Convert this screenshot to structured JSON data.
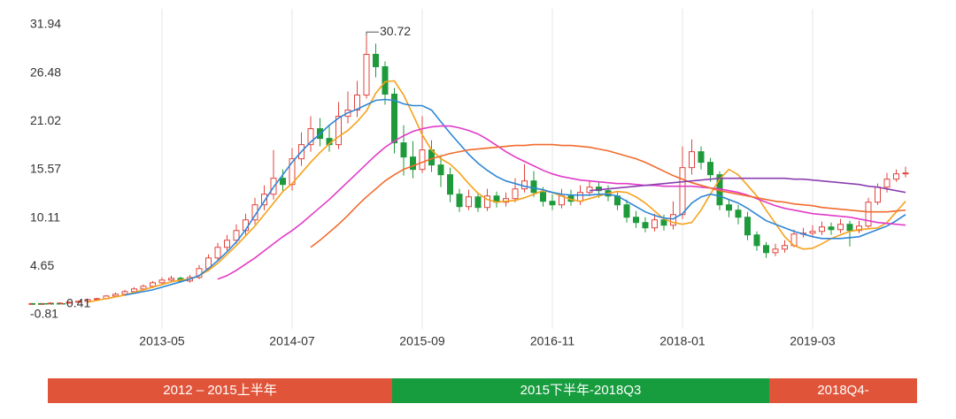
{
  "chart_data": {
    "type": "candlestick",
    "categories": [
      null,
      null,
      null,
      null,
      null,
      null,
      null,
      null,
      null,
      null,
      null,
      null,
      null,
      null,
      "2013-05",
      null,
      null,
      null,
      null,
      null,
      null,
      null,
      null,
      null,
      null,
      null,
      null,
      null,
      "2014-07",
      null,
      null,
      null,
      null,
      null,
      null,
      null,
      null,
      null,
      null,
      null,
      null,
      null,
      "2015-09",
      null,
      null,
      null,
      null,
      null,
      null,
      null,
      null,
      null,
      null,
      null,
      null,
      null,
      "2016-11",
      null,
      null,
      null,
      null,
      null,
      null,
      null,
      null,
      null,
      null,
      null,
      null,
      null,
      "2018-01",
      null,
      null,
      null,
      null,
      null,
      null,
      null,
      null,
      null,
      null,
      null,
      null,
      null,
      "2019-03",
      null,
      null,
      null,
      null,
      null,
      null,
      null,
      null,
      null,
      null
    ],
    "open": [
      0.45,
      0.45,
      0.45,
      0.5,
      0.5,
      0.6,
      0.7,
      0.9,
      1.0,
      1.3,
      1.5,
      1.8,
      2.1,
      2.4,
      2.8,
      3.1,
      3.3,
      3.0,
      3.4,
      4.4,
      5.6,
      6.8,
      7.6,
      8.7,
      9.9,
      11.6,
      12.8,
      14.6,
      13.9,
      16.8,
      18.4,
      20.2,
      19.1,
      18.4,
      21.6,
      22.3,
      24.0,
      28.6,
      27.2,
      24.1,
      18.6,
      17.0,
      15.6,
      17.8,
      16.1,
      15.0,
      12.8,
      11.4,
      12.5,
      11.3,
      12.6,
      11.9,
      12.3,
      13.4,
      14.3,
      13.0,
      12.0,
      11.6,
      12.6,
      12.0,
      13.0,
      13.6,
      13.2,
      12.6,
      11.6,
      10.2,
      9.6,
      9.0,
      9.9,
      9.3,
      10.5,
      15.8,
      17.6,
      16.4,
      15.0,
      11.6,
      11.0,
      10.2,
      8.2,
      7.0,
      6.2,
      6.6,
      7.0,
      8.3,
      8.4,
      8.6,
      9.1,
      8.8,
      9.4,
      8.7,
      9.2,
      11.9,
      13.6,
      14.5,
      15.1
    ],
    "high": [
      0.5,
      0.5,
      0.6,
      0.6,
      0.7,
      0.8,
      1.0,
      1.1,
      1.4,
      1.7,
      2.0,
      2.3,
      2.6,
      3.0,
      3.4,
      3.6,
      3.5,
      3.7,
      4.8,
      6.0,
      7.3,
      8.2,
      9.4,
      10.6,
      12.4,
      13.8,
      17.8,
      15.6,
      18.0,
      19.8,
      21.6,
      21.4,
      20.6,
      23.2,
      24.4,
      25.6,
      30.72,
      29.8,
      27.8,
      24.8,
      20.6,
      18.8,
      21.6,
      18.9,
      17.2,
      15.8,
      13.4,
      13.3,
      13.0,
      13.4,
      13.1,
      13.0,
      14.6,
      16.2,
      15.4,
      13.6,
      12.8,
      13.4,
      13.3,
      13.8,
      14.4,
      14.2,
      13.8,
      13.0,
      12.2,
      10.9,
      10.2,
      10.6,
      10.5,
      12.0,
      18.2,
      19.0,
      18.2,
      16.9,
      15.4,
      12.2,
      11.6,
      10.8,
      8.6,
      7.4,
      7.2,
      7.6,
      8.8,
      9.0,
      9.3,
      9.7,
      9.6,
      10.0,
      9.8,
      9.8,
      12.4,
      14.0,
      15.2,
      15.6,
      15.9
    ],
    "low": [
      0.41,
      0.41,
      0.41,
      0.45,
      0.45,
      0.5,
      0.6,
      0.8,
      0.9,
      1.2,
      1.4,
      1.6,
      1.9,
      2.2,
      2.6,
      2.9,
      2.8,
      2.8,
      3.2,
      4.1,
      5.3,
      6.4,
      7.2,
      8.2,
      9.4,
      11.0,
      12.2,
      13.1,
      13.2,
      16.0,
      17.6,
      18.2,
      17.6,
      17.9,
      20.8,
      21.5,
      23.6,
      26.0,
      22.9,
      17.4,
      14.9,
      14.6,
      15.2,
      15.3,
      13.6,
      11.9,
      10.8,
      11.0,
      10.8,
      10.9,
      11.3,
      11.4,
      11.9,
      13.0,
      12.5,
      11.4,
      11.0,
      11.2,
      11.5,
      11.6,
      12.6,
      12.4,
      12.0,
      11.0,
      9.6,
      9.0,
      8.5,
      8.6,
      8.7,
      8.8,
      10.0,
      15.0,
      15.6,
      14.2,
      11.0,
      10.2,
      9.4,
      7.6,
      6.4,
      5.6,
      5.8,
      6.2,
      6.8,
      7.9,
      8.0,
      8.2,
      8.2,
      8.4,
      6.9,
      8.4,
      9.0,
      11.6,
      13.0,
      14.2,
      14.7
    ],
    "close": [
      0.45,
      0.45,
      0.5,
      0.5,
      0.6,
      0.7,
      0.9,
      1.0,
      1.3,
      1.5,
      1.8,
      2.1,
      2.4,
      2.8,
      3.1,
      3.3,
      3.0,
      3.4,
      4.4,
      5.6,
      6.8,
      7.6,
      8.7,
      9.9,
      11.6,
      12.8,
      14.6,
      13.9,
      16.8,
      18.4,
      20.2,
      19.1,
      18.4,
      21.6,
      22.3,
      24.0,
      28.6,
      27.2,
      24.1,
      18.6,
      17.0,
      15.6,
      17.8,
      16.1,
      15.0,
      12.8,
      11.4,
      12.5,
      11.3,
      12.6,
      11.9,
      12.3,
      13.4,
      14.3,
      13.0,
      12.0,
      11.6,
      12.6,
      12.0,
      13.0,
      13.6,
      13.2,
      12.6,
      11.6,
      10.2,
      9.6,
      9.0,
      9.9,
      9.3,
      10.5,
      15.8,
      17.6,
      16.4,
      15.0,
      11.6,
      11.0,
      10.2,
      8.2,
      7.0,
      6.2,
      6.6,
      7.0,
      8.3,
      8.4,
      8.6,
      9.1,
      8.8,
      9.4,
      8.7,
      9.2,
      11.9,
      13.6,
      14.5,
      15.1,
      15.2
    ],
    "up_color": "#e0443c",
    "down_color": "#1e9a3a",
    "lines": [
      {
        "color": "#f5a21b",
        "values": [
          null,
          null,
          null,
          null,
          null,
          null,
          0.6,
          0.8,
          1.0,
          1.2,
          1.4,
          1.7,
          2.0,
          2.3,
          2.6,
          2.9,
          3.1,
          3.2,
          3.6,
          4.2,
          5.0,
          6.0,
          7.0,
          8.1,
          9.2,
          10.5,
          11.8,
          13.1,
          14.0,
          15.2,
          16.4,
          17.5,
          18.5,
          19.3,
          20.0,
          21.0,
          22.2,
          24.2,
          25.5,
          25.6,
          24.0,
          21.8,
          19.5,
          17.8,
          16.8,
          16.2,
          15.2,
          14.0,
          12.9,
          12.2,
          11.9,
          12.0,
          12.1,
          12.4,
          12.8,
          13.2,
          13.0,
          12.6,
          12.2,
          12.0,
          12.3,
          12.6,
          12.9,
          13.1,
          13.0,
          12.5,
          11.8,
          10.9,
          10.0,
          9.6,
          9.4,
          9.6,
          11.0,
          12.8,
          14.5,
          15.6,
          15.0,
          13.8,
          12.6,
          11.0,
          9.5,
          8.0,
          7.0,
          6.6,
          6.7,
          7.2,
          7.8,
          8.2,
          8.6,
          8.8,
          8.9,
          9.0,
          9.6,
          10.8,
          12.0
        ]
      },
      {
        "color": "#2f86d6",
        "values": [
          null,
          null,
          null,
          null,
          null,
          null,
          null,
          null,
          null,
          null,
          1.4,
          1.6,
          1.8,
          2.0,
          2.3,
          2.6,
          2.9,
          3.2,
          3.6,
          4.4,
          5.3,
          6.3,
          7.4,
          8.8,
          10.4,
          12.0,
          13.6,
          15.0,
          16.4,
          17.6,
          18.7,
          19.6,
          20.6,
          21.4,
          22.0,
          22.4,
          22.9,
          23.4,
          23.5,
          23.4,
          23.0,
          22.8,
          22.8,
          22.3,
          21.0,
          19.7,
          18.5,
          17.3,
          16.3,
          15.5,
          14.8,
          14.3,
          14.0,
          13.7,
          13.5,
          13.3,
          13.0,
          12.8,
          12.7,
          12.7,
          12.7,
          12.8,
          12.8,
          12.6,
          12.0,
          11.4,
          10.8,
          10.4,
          10.1,
          10.0,
          10.6,
          11.8,
          12.5,
          12.8,
          12.6,
          12.2,
          11.8,
          11.2,
          10.5,
          9.8,
          9.4,
          9.0,
          8.6,
          8.3,
          8.0,
          7.8,
          7.8,
          7.8,
          7.9,
          8.0,
          8.4,
          8.8,
          9.2,
          9.8,
          10.5
        ]
      },
      {
        "color": "#e23bc8",
        "values": [
          null,
          null,
          null,
          null,
          null,
          null,
          null,
          null,
          null,
          null,
          null,
          null,
          null,
          null,
          null,
          null,
          null,
          null,
          null,
          null,
          3.2,
          3.6,
          4.2,
          4.9,
          5.6,
          6.4,
          7.2,
          8.0,
          8.7,
          9.5,
          10.4,
          11.3,
          12.2,
          13.2,
          14.2,
          15.2,
          16.2,
          17.2,
          18.1,
          18.8,
          19.4,
          19.9,
          20.2,
          20.4,
          20.5,
          20.5,
          20.3,
          20.0,
          19.6,
          19.0,
          18.3,
          17.6,
          17.0,
          16.5,
          16.0,
          15.5,
          15.1,
          14.8,
          14.6,
          14.4,
          14.3,
          14.2,
          14.1,
          14.0,
          14.0,
          13.9,
          13.8,
          13.8,
          13.7,
          13.7,
          13.7,
          13.7,
          13.6,
          13.5,
          13.4,
          13.2,
          13.0,
          12.7,
          12.3,
          11.9,
          11.5,
          11.2,
          11.0,
          10.8,
          10.6,
          10.5,
          10.4,
          10.3,
          10.2,
          10.0,
          9.8,
          9.6,
          9.5,
          9.4,
          9.3
        ]
      },
      {
        "color": "#f26b2e",
        "values": [
          null,
          null,
          null,
          null,
          null,
          null,
          null,
          null,
          null,
          null,
          null,
          null,
          null,
          null,
          null,
          null,
          null,
          null,
          null,
          null,
          null,
          null,
          null,
          null,
          null,
          null,
          null,
          null,
          null,
          null,
          6.8,
          7.6,
          8.5,
          9.4,
          10.4,
          11.5,
          12.5,
          13.4,
          14.3,
          15.0,
          15.6,
          16.0,
          16.4,
          16.8,
          17.1,
          17.4,
          17.6,
          17.8,
          17.9,
          18.0,
          18.1,
          18.2,
          18.3,
          18.3,
          18.4,
          18.4,
          18.4,
          18.3,
          18.3,
          18.2,
          18.1,
          17.9,
          17.7,
          17.4,
          17.1,
          16.8,
          16.4,
          15.9,
          15.4,
          14.9,
          14.5,
          14.1,
          13.8,
          13.5,
          13.2,
          13.0,
          12.8,
          12.6,
          12.4,
          12.2,
          12.0,
          11.9,
          11.7,
          11.6,
          11.5,
          11.3,
          11.2,
          11.1,
          11.0,
          10.9,
          10.8,
          10.8,
          10.8,
          10.9,
          11.0
        ]
      },
      {
        "color": "#8a3fb0",
        "values": [
          null,
          null,
          null,
          null,
          null,
          null,
          null,
          null,
          null,
          null,
          null,
          null,
          null,
          null,
          null,
          null,
          null,
          null,
          null,
          null,
          null,
          null,
          null,
          null,
          null,
          null,
          null,
          null,
          null,
          null,
          null,
          null,
          null,
          null,
          null,
          null,
          null,
          null,
          null,
          null,
          null,
          null,
          null,
          null,
          null,
          null,
          null,
          null,
          null,
          null,
          null,
          null,
          null,
          null,
          null,
          null,
          null,
          null,
          null,
          null,
          13.2,
          13.3,
          13.4,
          13.5,
          13.6,
          13.7,
          13.8,
          13.9,
          14.0,
          14.1,
          14.2,
          14.3,
          14.4,
          14.5,
          14.6,
          14.6,
          14.6,
          14.6,
          14.6,
          14.6,
          14.6,
          14.6,
          14.5,
          14.5,
          14.4,
          14.3,
          14.2,
          14.1,
          14.0,
          13.9,
          13.7,
          13.6,
          13.4,
          13.2,
          13.0
        ]
      }
    ],
    "annotations": [
      30.72,
      0.41
    ],
    "ylim": [
      -0.81,
      31.94
    ],
    "yticks": [
      -0.81,
      4.65,
      10.11,
      15.57,
      21.02,
      26.48,
      31.94
    ],
    "grid": true,
    "periods": [
      {
        "label": "2012 – 2015上半年",
        "color": "#e0553a"
      },
      {
        "label": "2015下半年-2018Q3",
        "color": "#179c3e"
      },
      {
        "label": "2018Q4-",
        "color": "#e0553a"
      }
    ]
  }
}
